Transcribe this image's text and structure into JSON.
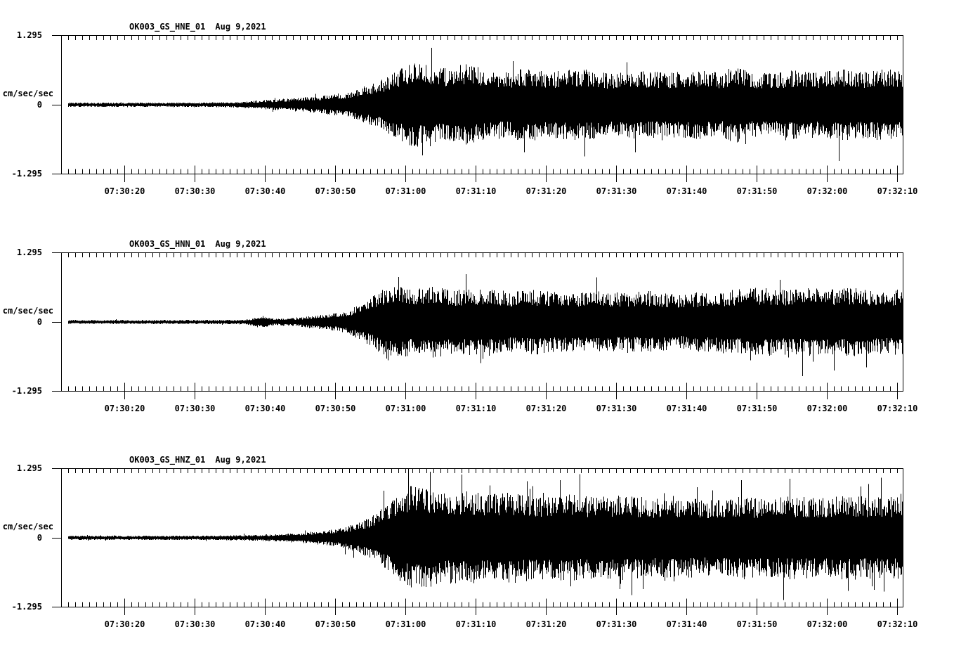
{
  "colors": {
    "background": "#ffffff",
    "trace": "#000000",
    "text": "#000000"
  },
  "chart_data": [
    {
      "type": "line",
      "chart_kind": "seismogram",
      "station_channel": "OK003_GS_HNE_01",
      "date": "Aug 9,2021",
      "ylabel": "cm/sec/sec",
      "ytick_labels": [
        "1.295",
        "0",
        "-1.295"
      ],
      "ylim": [
        -1.295,
        1.295
      ],
      "x_start_time": "07:30:11",
      "x_end_time": "07:32:11",
      "x_minor_tick_seconds": 1,
      "x_major_tick_seconds": 10,
      "xtick_labels": [
        "07:30:20",
        "07:30:30",
        "07:30:40",
        "07:30:50",
        "07:31:00",
        "07:31:10",
        "07:31:20",
        "07:31:30",
        "07:31:40",
        "07:31:50",
        "07:32:00",
        "07:32:10"
      ],
      "envelope_t_sec": [
        1,
        20,
        25,
        28,
        30,
        34,
        37,
        40,
        42,
        44,
        46,
        48,
        50,
        52,
        55,
        57,
        60,
        63,
        66,
        70,
        74,
        78,
        82,
        86,
        90,
        94,
        96,
        98,
        102,
        105,
        108,
        111,
        114,
        117,
        120
      ],
      "envelope_amp": [
        0.039,
        0.041,
        0.052,
        0.078,
        0.097,
        0.13,
        0.168,
        0.22,
        0.285,
        0.389,
        0.492,
        0.648,
        0.803,
        0.751,
        0.673,
        0.777,
        0.686,
        0.622,
        0.686,
        0.622,
        0.673,
        0.596,
        0.648,
        0.596,
        0.648,
        0.596,
        0.751,
        0.622,
        0.596,
        0.673,
        0.609,
        0.686,
        0.622,
        0.673,
        0.648
      ]
    },
    {
      "type": "line",
      "chart_kind": "seismogram",
      "station_channel": "OK003_GS_HNN_01",
      "date": "Aug 9,2021",
      "ylabel": "cm/sec/sec",
      "ytick_labels": [
        "1.295",
        "0",
        "-1.295"
      ],
      "ylim": [
        -1.295,
        1.295
      ],
      "x_start_time": "07:30:11",
      "x_end_time": "07:32:11",
      "x_minor_tick_seconds": 1,
      "x_major_tick_seconds": 10,
      "xtick_labels": [
        "07:30:20",
        "07:30:30",
        "07:30:40",
        "07:30:50",
        "07:31:00",
        "07:31:10",
        "07:31:20",
        "07:31:30",
        "07:31:40",
        "07:31:50",
        "07:32:00",
        "07:32:10"
      ],
      "envelope_t_sec": [
        1,
        20,
        26,
        27,
        28.5,
        30,
        33,
        36,
        39,
        41,
        43,
        45,
        46.5,
        48,
        50,
        53,
        56,
        60,
        64,
        68,
        72,
        76,
        80,
        84,
        88,
        92,
        96,
        100,
        104,
        107,
        110,
        113,
        116,
        120
      ],
      "envelope_amp": [
        0.036,
        0.039,
        0.041,
        0.065,
        0.117,
        0.065,
        0.078,
        0.117,
        0.168,
        0.233,
        0.363,
        0.544,
        0.712,
        0.673,
        0.622,
        0.673,
        0.596,
        0.648,
        0.57,
        0.609,
        0.544,
        0.596,
        0.544,
        0.583,
        0.518,
        0.57,
        0.609,
        0.648,
        0.596,
        0.673,
        0.609,
        0.648,
        0.583,
        0.622
      ]
    },
    {
      "type": "line",
      "chart_kind": "seismogram",
      "station_channel": "OK003_GS_HNZ_01",
      "date": "Aug 9,2021",
      "ylabel": "cm/sec/sec",
      "ytick_labels": [
        "1.295",
        "0",
        "-1.295"
      ],
      "ylim": [
        -1.295,
        1.295
      ],
      "x_start_time": "07:30:11",
      "x_end_time": "07:32:11",
      "x_minor_tick_seconds": 1,
      "x_major_tick_seconds": 10,
      "xtick_labels": [
        "07:30:20",
        "07:30:30",
        "07:30:40",
        "07:30:50",
        "07:31:00",
        "07:31:10",
        "07:31:20",
        "07:31:30",
        "07:31:40",
        "07:31:50",
        "07:32:00",
        "07:32:10"
      ],
      "envelope_t_sec": [
        1,
        20,
        26,
        30,
        34,
        37,
        40,
        42,
        44,
        46,
        48,
        50,
        52,
        55,
        58,
        61,
        64,
        68,
        72,
        76,
        80,
        84,
        88,
        92,
        96,
        100,
        104,
        108,
        112,
        116,
        120
      ],
      "envelope_amp": [
        0.039,
        0.041,
        0.052,
        0.065,
        0.091,
        0.13,
        0.181,
        0.259,
        0.389,
        0.583,
        0.803,
        1.01,
        0.932,
        0.842,
        0.881,
        0.803,
        0.855,
        0.777,
        0.816,
        0.751,
        0.803,
        0.738,
        0.777,
        0.725,
        0.777,
        0.725,
        0.777,
        0.738,
        0.79,
        0.751,
        0.777
      ]
    }
  ]
}
